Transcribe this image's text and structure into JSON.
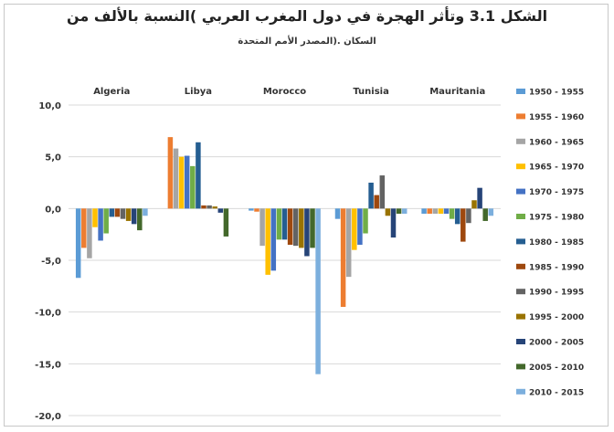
{
  "chart_data": {
    "type": "bar",
    "title": "الشكل 3.1 وتأثر الهجرة في دول المغرب العربي )النسبة بالألف من",
    "subtitle": "السكان .(المصدر الأمم المتحدة",
    "categories": [
      "Algeria",
      "Libya",
      "Morocco",
      "Tunisia",
      "Mauritania"
    ],
    "ylim": [
      -20,
      10
    ],
    "yticks": [
      "10,0",
      "5,0",
      "0,0",
      "-5,0",
      "-10,0",
      "-15,0",
      "-20,0"
    ],
    "grid": true,
    "legend_position": "right",
    "series": [
      {
        "name": "1950 - 1955",
        "color": "#5b9bd5",
        "values": [
          -6.7,
          0.0,
          -0.2,
          -1.0,
          -0.5
        ]
      },
      {
        "name": "1955 - 1960",
        "color": "#ed7d31",
        "values": [
          -3.8,
          6.9,
          -0.3,
          -9.5,
          -0.5
        ]
      },
      {
        "name": "1960 - 1965",
        "color": "#a5a5a5",
        "values": [
          -4.8,
          5.8,
          -3.6,
          -6.6,
          -0.5
        ]
      },
      {
        "name": "1965 - 1970",
        "color": "#ffc000",
        "values": [
          -1.8,
          5.0,
          -6.4,
          -4.0,
          -0.5
        ]
      },
      {
        "name": "1970 - 1975",
        "color": "#4472c4",
        "values": [
          -3.1,
          5.1,
          -6.0,
          -3.5,
          -0.5
        ]
      },
      {
        "name": "1975 - 1980",
        "color": "#70ad47",
        "values": [
          -2.4,
          4.1,
          -3.0,
          -2.4,
          -1.0
        ]
      },
      {
        "name": "1980 - 1985",
        "color": "#255e91",
        "values": [
          -0.8,
          6.4,
          -3.0,
          2.5,
          -1.5
        ]
      },
      {
        "name": "1985 - 1990",
        "color": "#9e480e",
        "values": [
          -0.8,
          0.3,
          -3.5,
          1.3,
          -3.2
        ]
      },
      {
        "name": "1990 - 1995",
        "color": "#636363",
        "values": [
          -1.0,
          0.3,
          -3.6,
          3.2,
          -1.4
        ]
      },
      {
        "name": "1995 - 2000",
        "color": "#997300",
        "values": [
          -1.2,
          0.2,
          -3.8,
          -0.7,
          0.8
        ]
      },
      {
        "name": "2000 - 2005",
        "color": "#264478",
        "values": [
          -1.5,
          -0.4,
          -4.6,
          -2.8,
          2.0
        ]
      },
      {
        "name": "2005 - 2010",
        "color": "#43682b",
        "values": [
          -2.1,
          -2.7,
          -3.8,
          -0.5,
          -1.2
        ]
      },
      {
        "name": "2010 - 2015",
        "color": "#7cafdd",
        "values": [
          -0.7,
          0.0,
          -16.0,
          -0.5,
          -0.7
        ]
      }
    ]
  }
}
